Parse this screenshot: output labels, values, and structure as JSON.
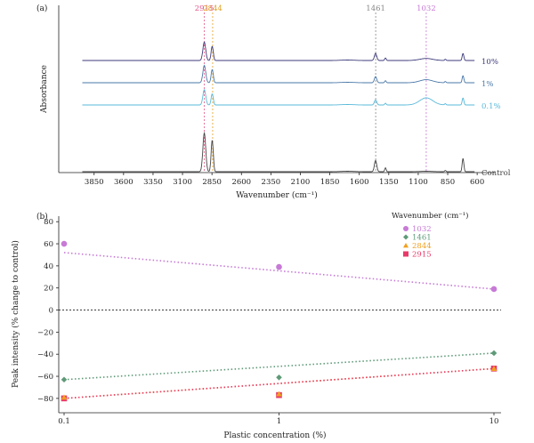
{
  "chart_data": [
    {
      "type": "line",
      "panel_label": "(a)",
      "xlabel": "Wavenumber (cm⁻¹)",
      "ylabel": "Absorbance",
      "xlim": [
        4150,
        450
      ],
      "x_reversed": true,
      "x_ticks": [
        "3850",
        "3600",
        "3350",
        "3100",
        "2850",
        "2600",
        "2350",
        "2100",
        "1850",
        "1600",
        "1350",
        "1100",
        "850",
        "600"
      ],
      "peaks": [
        {
          "label": "2915",
          "x": 2915,
          "color": "#e0558a"
        },
        {
          "label": "2844",
          "x": 2844,
          "color": "#e0a020"
        },
        {
          "label": "1461",
          "x": 1461,
          "color": "#888888"
        },
        {
          "label": "1032",
          "x": 1032,
          "color": "#c77ad6"
        }
      ],
      "series": [
        {
          "name": "10%",
          "color": "#3d3a7a",
          "peak_heights": [
            0.9,
            0.7,
            0.35,
            0.1
          ]
        },
        {
          "name": "1%",
          "color": "#4a78a8",
          "peak_heights": [
            0.85,
            0.65,
            0.3,
            0.15
          ]
        },
        {
          "name": "0.1%",
          "color": "#58b8d8",
          "peak_heights": [
            0.75,
            0.55,
            0.25,
            0.35
          ]
        },
        {
          "name": "Control",
          "color": "#444444",
          "peak_heights": [
            1.9,
            1.55,
            0.55,
            0.02
          ]
        }
      ],
      "grid": false
    },
    {
      "type": "scatter",
      "panel_label": "(b)",
      "xlabel": "Plastic concentration (%)",
      "ylabel": "Peak intensity (% change to control)",
      "x_scale": "log",
      "xlim": [
        0.1,
        10
      ],
      "ylim": [
        -90,
        80
      ],
      "x_ticks": [
        "0.1",
        "1",
        "10"
      ],
      "y_ticks": [
        "80",
        "60",
        "40",
        "20",
        "0",
        "−20",
        "−40",
        "−60",
        "−80"
      ],
      "legend_title": "Wavenumber (cm⁻¹)",
      "legend_position": "top-right",
      "zero_line": true,
      "series": [
        {
          "name": "1032",
          "color": "#c77ad6",
          "marker": "circle",
          "x": [
            0.1,
            1,
            10
          ],
          "y": [
            60,
            39,
            19
          ],
          "fit": [
            52,
            19
          ]
        },
        {
          "name": "1461",
          "color": "#5e9a78",
          "marker": "diamond",
          "x": [
            0.1,
            1,
            10
          ],
          "y": [
            -63,
            -61,
            -39
          ],
          "fit": [
            -63,
            -39
          ]
        },
        {
          "name": "2844",
          "color": "#f0a020",
          "marker": "triangle",
          "x": [
            0.1,
            1,
            10
          ],
          "y": [
            -79,
            -76,
            -53
          ],
          "fit": [
            -80,
            -53
          ]
        },
        {
          "name": "2915",
          "color": "#e83a6a",
          "marker": "square",
          "x": [
            0.1,
            1,
            10
          ],
          "y": [
            -80,
            -77,
            -53
          ],
          "fit": [
            -80,
            -53
          ]
        }
      ]
    }
  ]
}
